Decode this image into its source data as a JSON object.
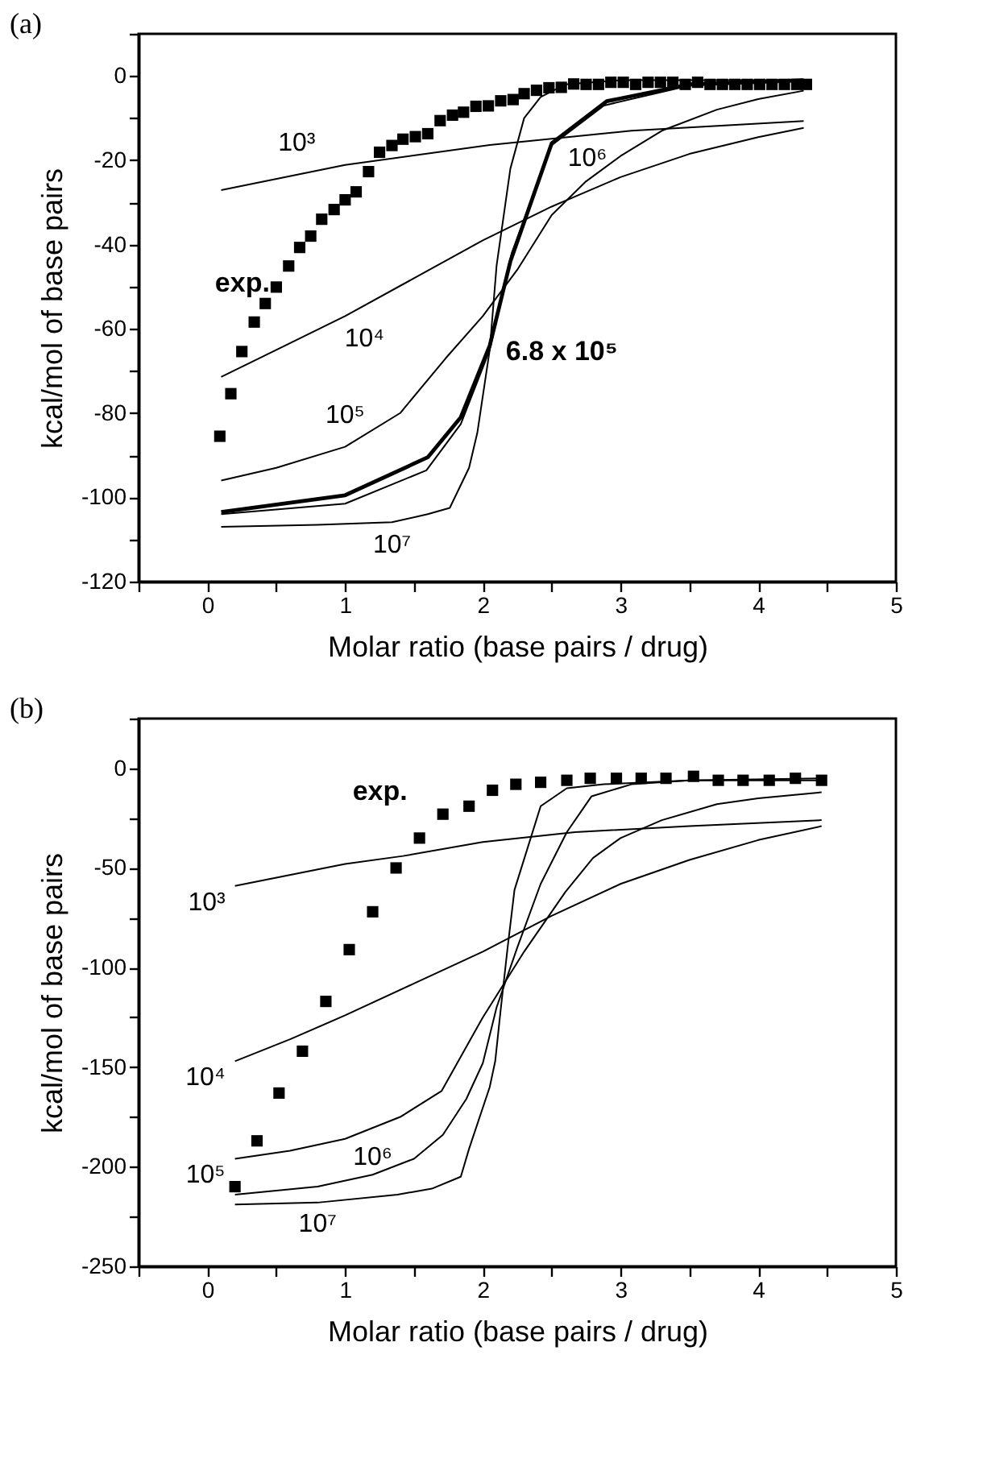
{
  "chart_data": [
    {
      "type": "line",
      "title": "(a)",
      "xlabel": "Molar ratio (base pairs / drug)",
      "ylabel": "kcal/mol of base pairs",
      "xlim": [
        -0.5,
        5
      ],
      "ylim": [
        -120,
        10
      ],
      "xticks": [
        {
          "value": -0.5,
          "label": null
        },
        0,
        {
          "value": 0.5,
          "label": null
        },
        1,
        {
          "value": 1.5,
          "label": null
        },
        2,
        {
          "value": 2.5,
          "label": null
        },
        3,
        {
          "value": 3.5,
          "label": null
        },
        4,
        {
          "value": 4.5,
          "label": null
        },
        5
      ],
      "yticks": [
        -120,
        {
          "value": -110,
          "label": null
        },
        -100,
        {
          "value": -90,
          "label": null
        },
        -80,
        {
          "value": -70,
          "label": null
        },
        -60,
        {
          "value": -50,
          "label": null
        },
        -40,
        {
          "value": -30,
          "label": null
        },
        -20,
        {
          "value": -10,
          "label": null
        },
        0,
        {
          "value": 10,
          "label": null
        }
      ],
      "grid": false,
      "legend": false,
      "series": [
        {
          "name": "exp.",
          "type": "scatter",
          "marker": "square",
          "color": "#000000",
          "x": [
            0.09,
            0.17,
            0.25,
            0.34,
            0.42,
            0.5,
            0.59,
            0.67,
            0.75,
            0.83,
            0.92,
            1.0,
            1.08,
            1.17,
            1.25,
            1.34,
            1.42,
            1.51,
            1.6,
            1.69,
            1.78,
            1.86,
            1.95,
            2.04,
            2.13,
            2.22,
            2.3,
            2.39,
            2.48,
            2.57,
            2.66,
            2.75,
            2.84,
            2.93,
            3.02,
            3.11,
            3.2,
            3.29,
            3.38,
            3.47,
            3.56,
            3.65,
            3.74,
            3.83,
            3.92,
            4.01,
            4.1,
            4.19,
            4.28,
            4.35
          ],
          "values": [
            -85.5,
            -75.4,
            -65.4,
            -58.4,
            -54.0,
            -50.1,
            -45.1,
            -40.7,
            -38.0,
            -34.0,
            -31.7,
            -29.4,
            -27.5,
            -22.7,
            -18.1,
            -16.5,
            -15.0,
            -14.4,
            -13.7,
            -10.6,
            -9.3,
            -8.6,
            -7.2,
            -7.1,
            -5.9,
            -5.6,
            -4.2,
            -3.4,
            -2.8,
            -2.7,
            -1.9,
            -2.0,
            -2.0,
            -1.5,
            -1.5,
            -2.0,
            -1.5,
            -1.5,
            -1.5,
            -2.0,
            -1.5,
            -2.0,
            -2.0,
            -2.0,
            -2.0,
            -2.0,
            -2.0,
            -2.0,
            -2.0,
            -2.0
          ]
        },
        {
          "name": "10³",
          "marker": "none",
          "color": "#000000",
          "x": [
            0.1,
            1.0,
            2.05,
            3.08,
            4.33
          ],
          "values": [
            -27.1,
            -21.1,
            -16.4,
            -13.0,
            -10.7
          ]
        },
        {
          "name": "10⁴",
          "marker": "none",
          "color": "#000000",
          "x": [
            0.1,
            0.5,
            1.0,
            1.5,
            2.0,
            2.5,
            3.0,
            3.5,
            4.0,
            4.33
          ],
          "values": [
            -71.4,
            -65,
            -57,
            -48,
            -39,
            -31,
            -24,
            -18.5,
            -14.5,
            -12.3
          ]
        },
        {
          "name": "10⁵",
          "marker": "none",
          "color": "#000000",
          "x": [
            0.1,
            0.5,
            1.0,
            1.4,
            1.73,
            2.0,
            2.25,
            2.5,
            2.75,
            3.0,
            3.3,
            3.7,
            4.0,
            4.33
          ],
          "values": [
            -96,
            -93,
            -88,
            -80,
            -67,
            -57,
            -46,
            -33,
            -25,
            -19,
            -13,
            -8,
            -5.5,
            -3.5
          ]
        },
        {
          "name": "6.8 x 10⁵",
          "marker": "none",
          "color": "#000000",
          "x": [
            0.1,
            1.0,
            1.6,
            1.84,
            2.05,
            2.2,
            2.5,
            2.9,
            3.5,
            4.33
          ],
          "values": [
            -103.5,
            -99.5,
            -90.5,
            -81,
            -64,
            -44,
            -16,
            -6,
            -2,
            -1
          ]
        },
        {
          "name": "10⁶",
          "marker": "none",
          "color": "#000000",
          "x": [
            0.1,
            1.0,
            1.59,
            1.84,
            2.05,
            2.21,
            2.5,
            2.88,
            3.5,
            4.33
          ],
          "values": [
            -104,
            -101.5,
            -93.6,
            -82.6,
            -65,
            -42,
            -16.4,
            -7,
            -2.3,
            -1
          ]
        },
        {
          "name": "10⁷",
          "marker": "none",
          "color": "#000000",
          "x": [
            0.1,
            0.8,
            1.34,
            1.6,
            1.76,
            1.9,
            1.96,
            2.05,
            2.1,
            2.2,
            2.3,
            2.42,
            2.6,
            3.0,
            4.33
          ],
          "values": [
            -107,
            -106.5,
            -105.9,
            -104,
            -102.5,
            -93,
            -84.7,
            -65,
            -45,
            -22,
            -10,
            -5,
            -2,
            -1,
            -1
          ]
        }
      ]
    },
    {
      "type": "line",
      "title": "(b)",
      "xlabel": "Molar ratio (base pairs / drug)",
      "ylabel": "kcal/mol of base pairs",
      "xlim": [
        -0.5,
        5
      ],
      "ylim": [
        -250,
        25
      ],
      "xticks": [
        {
          "value": -0.5,
          "label": null
        },
        0,
        {
          "value": 0.5,
          "label": null
        },
        1,
        {
          "value": 1.5,
          "label": null
        },
        2,
        {
          "value": 2.5,
          "label": null
        },
        3,
        {
          "value": 3.5,
          "label": null
        },
        4,
        {
          "value": 4.5,
          "label": null
        },
        5
      ],
      "yticks": [
        -250,
        {
          "value": -225,
          "label": null
        },
        -200,
        {
          "value": -175,
          "label": null
        },
        -150,
        {
          "value": -125,
          "label": null
        },
        -100,
        {
          "value": -75,
          "label": null
        },
        -50,
        {
          "value": -25,
          "label": null
        },
        0,
        {
          "value": 25,
          "label": null
        }
      ],
      "grid": false,
      "legend": false,
      "series": [
        {
          "name": "exp.",
          "type": "scatter",
          "marker": "square",
          "color": "#000000",
          "x": [
            0.2,
            0.36,
            0.52,
            0.69,
            0.86,
            1.03,
            1.2,
            1.37,
            1.54,
            1.71,
            1.9,
            2.07,
            2.24,
            2.42,
            2.61,
            2.78,
            2.97,
            3.15,
            3.33,
            3.53,
            3.71,
            3.89,
            4.08,
            4.27,
            4.46
          ],
          "values": [
            -210,
            -187,
            -163,
            -142,
            -117,
            -91,
            -72,
            -50,
            -35,
            -23,
            -19,
            -11,
            -8,
            -7,
            -6,
            -5,
            -5,
            -5,
            -5,
            -4,
            -6,
            -6,
            -6,
            -5,
            -6
          ]
        },
        {
          "name": "10³",
          "marker": "none",
          "color": "#000000",
          "x": [
            0.2,
            1.0,
            1.42,
            2.0,
            2.67,
            3.5,
            4.46
          ],
          "values": [
            -59,
            -48,
            -44,
            -37,
            -32,
            -29,
            -26
          ]
        },
        {
          "name": "10⁴",
          "marker": "none",
          "color": "#000000",
          "x": [
            0.2,
            0.6,
            1.0,
            1.5,
            2.0,
            2.5,
            3.0,
            3.5,
            4.0,
            4.46
          ],
          "values": [
            -147,
            -136,
            -124,
            -108,
            -92,
            -74,
            -58,
            -46,
            -36,
            -29
          ]
        },
        {
          "name": "10⁵",
          "marker": "none",
          "color": "#000000",
          "x": [
            0.2,
            0.6,
            1.0,
            1.4,
            1.7,
            2.0,
            2.3,
            2.6,
            2.8,
            3.0,
            3.3,
            3.7,
            4.0,
            4.46
          ],
          "values": [
            -196,
            -192,
            -186,
            -175,
            -162,
            -125,
            -92,
            -62,
            -45,
            -35,
            -26,
            -18,
            -15,
            -12
          ]
        },
        {
          "name": "10⁶",
          "marker": "none",
          "color": "#000000",
          "x": [
            0.2,
            0.8,
            1.2,
            1.5,
            1.71,
            1.88,
            2.0,
            2.1,
            2.25,
            2.42,
            2.61,
            2.79,
            3.08,
            3.5,
            4.46
          ],
          "values": [
            -214,
            -210,
            -204,
            -196,
            -184,
            -166,
            -148,
            -120,
            -90,
            -58,
            -32,
            -14,
            -8,
            -6,
            -6
          ]
        },
        {
          "name": "10⁷",
          "marker": "none",
          "color": "#000000",
          "x": [
            0.2,
            0.8,
            1.38,
            1.63,
            1.84,
            1.9,
            2.05,
            2.09,
            2.13,
            2.18,
            2.23,
            2.42,
            2.61,
            2.88,
            3.5,
            4.46
          ],
          "values": [
            -219,
            -218,
            -214,
            -211,
            -205,
            -191,
            -160,
            -147,
            -121,
            -90,
            -61,
            -19,
            -10,
            -8,
            -6,
            -5
          ]
        }
      ]
    }
  ]
}
